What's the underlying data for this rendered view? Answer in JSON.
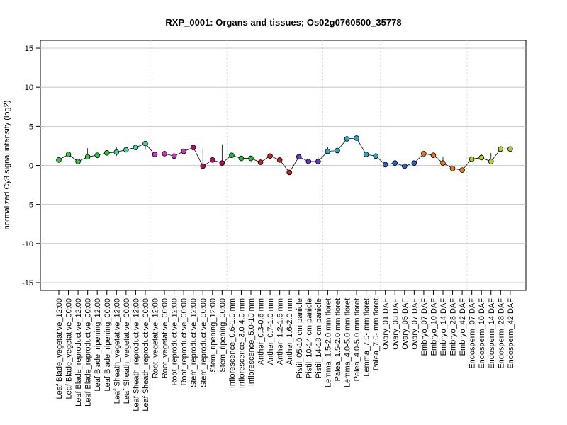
{
  "chart_data": {
    "type": "line",
    "title": "RXP_0001: Organs and tissues; Os02g0760500_35778",
    "xlabel": "",
    "ylabel": "normalized Cy3 signal intensity (log2)",
    "ylim": [
      -16,
      16
    ],
    "yticks": [
      -15,
      -10,
      -5,
      0,
      5,
      10,
      15
    ],
    "ytick_labels": [
      "-15",
      "-10",
      "-5",
      "0",
      "5",
      "10",
      "15"
    ],
    "grid": true,
    "categories": [
      "Leaf Blade_vegetative_12:00",
      "Leaf Blade_vegetative_00:00",
      "Leaf Blade_reproductive_12:00",
      "Leaf Blade_reproductive_00:00",
      "Leaf Blade_ripening_12:00",
      "Leaf Blade_ripening_00:00",
      "Leaf Sheath_vegetative_12:00",
      "Leaf Sheath_vegetative_00:00",
      "Leaf Sheath_reproductive_12:00",
      "Leaf Sheath_reproductive_00:00",
      "Root_vegetative_12:00",
      "Root_vegetative_00:00",
      "Root_reproductive_12:00",
      "Root_reproductive_00:00",
      "Stem_reproductive_12:00",
      "Stem_reproductive_00:00",
      "Stem_ripening_12:00",
      "Stem_ripening_00:00",
      "Inflorescence_0.6-1.0 mm",
      "Inflorescence_3.0-4.0 mm",
      "Inflorescence_5.0-10 mm",
      "Anther_0.3-0.6 mm",
      "Anther_0.7-1.0 mm",
      "Anther_1.2-1.5 mm",
      "Anther_1.6-2.0 mm",
      "Pistil_05-10 cm panicle",
      "Pistil_10-14 cm panicle",
      "Pistil_14-18 cm panicle",
      "Lemma_1.5-2.0 mm floret",
      "Palea_1.5-2.0 mm floret",
      "Lemma_4.0-5.0 mm floret",
      "Palea_4.0-5.0 mm floret",
      "Lemma_7.0- mm floret",
      "Palea_7.0- mm floret",
      "Ovary_01 DAF",
      "Ovary_03 DAF",
      "Ovary_05 DAF",
      "Ovary_07 DAF",
      "Embryo_07 DAF",
      "Embryo_10 DAF",
      "Embryo_14 DAF",
      "Embryo_28 DAF",
      "Embryo_42 DAF",
      "Endosperm_07 DAF",
      "Endosperm_10 DAF",
      "Endosperm_14 DAF",
      "Endosperm_28 DAF",
      "Endosperm_42 DAF"
    ],
    "values": [
      0.7,
      1.4,
      0.5,
      1.1,
      1.3,
      1.6,
      1.7,
      2.0,
      2.3,
      2.8,
      1.4,
      1.5,
      1.2,
      1.8,
      2.3,
      -0.1,
      0.7,
      0.3,
      1.3,
      0.9,
      0.9,
      0.4,
      1.2,
      0.7,
      -0.9,
      1.1,
      0.5,
      0.5,
      1.8,
      1.9,
      3.4,
      3.5,
      1.4,
      1.2,
      0.1,
      0.3,
      -0.1,
      0.3,
      1.5,
      1.3,
      0.3,
      -0.4,
      -0.6,
      0.8,
      1.0,
      0.5,
      2.1,
      2.1
    ],
    "error_high": [
      0.9,
      1.5,
      0.6,
      2.2,
      1.4,
      1.7,
      2.3,
      2.3,
      2.5,
      2.9,
      2.2,
      1.6,
      1.6,
      2.2,
      2.4,
      2.2,
      1.0,
      2.7,
      1.4,
      1.0,
      1.0,
      0.5,
      1.3,
      0.8,
      -0.8,
      1.2,
      0.7,
      1.1,
      2.4,
      2.0,
      3.5,
      3.6,
      1.5,
      1.3,
      0.2,
      0.4,
      0.0,
      0.4,
      1.6,
      1.4,
      1.1,
      -0.3,
      -0.5,
      0.9,
      1.4,
      1.6,
      2.2,
      2.2
    ],
    "error_low": [
      0.5,
      1.3,
      0.4,
      0.9,
      1.2,
      1.5,
      1.2,
      1.7,
      2.1,
      2.0,
      1.0,
      1.4,
      0.9,
      1.5,
      2.2,
      -0.2,
      0.5,
      -0.1,
      1.2,
      0.8,
      0.8,
      0.3,
      1.1,
      0.6,
      -1.0,
      1.0,
      0.3,
      0.1,
      1.4,
      1.8,
      3.3,
      3.4,
      1.3,
      1.1,
      0.0,
      0.2,
      -0.2,
      0.2,
      1.4,
      1.2,
      0.1,
      -0.5,
      -0.7,
      0.7,
      0.8,
      0.2,
      2.0,
      2.0
    ],
    "point_colors": [
      "#2ecc40",
      "#2ecc40",
      "#2ecc40",
      "#2ecc40",
      "#2ecc40",
      "#2ecc40",
      "#3cd6a4",
      "#3cd6a4",
      "#3cd6a4",
      "#3cd6a4",
      "#cc33cc",
      "#cc33cc",
      "#cc33cc",
      "#cc33cc",
      "#cc0066",
      "#cc0066",
      "#cc0066",
      "#cc0066",
      "#22bb44",
      "#22bb44",
      "#22bb44",
      "#cc2222",
      "#cc2222",
      "#cc2222",
      "#cc2222",
      "#6633cc",
      "#6633cc",
      "#6633cc",
      "#22aacc",
      "#22aacc",
      "#22aacc",
      "#22aacc",
      "#22aacc",
      "#22aacc",
      "#2266cc",
      "#2266cc",
      "#2266cc",
      "#2266cc",
      "#ee7722",
      "#ee7722",
      "#ee7722",
      "#ee7722",
      "#ee7722",
      "#bbcc22",
      "#bbcc22",
      "#bbcc22",
      "#bbcc22",
      "#bbcc22"
    ],
    "vertical_group_separators_after_index": [
      9,
      17,
      27,
      33,
      42
    ]
  }
}
